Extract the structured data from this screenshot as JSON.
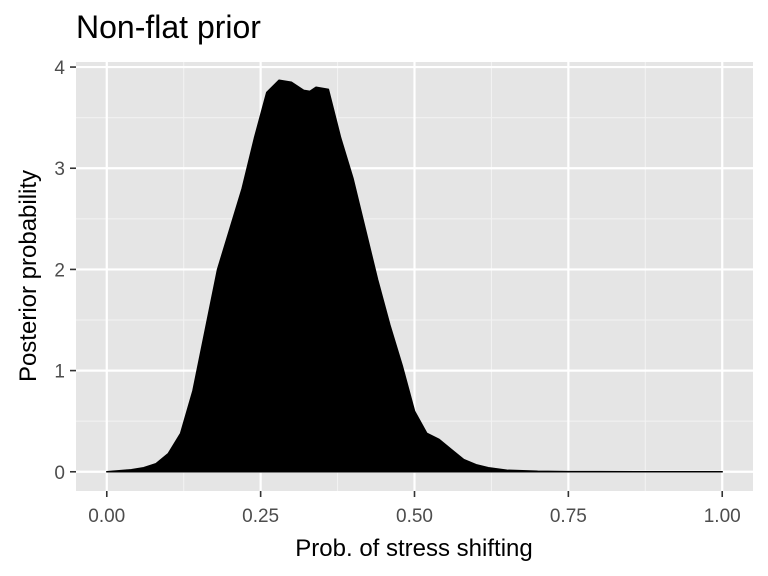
{
  "chart_data": {
    "type": "area",
    "title": "Non-flat prior",
    "xlabel": "Prob. of stress shifting",
    "ylabel": "Posterior probability",
    "xlim": [
      -0.05,
      1.05
    ],
    "ylim": [
      -0.19,
      4.05
    ],
    "grid": true,
    "x_ticks": [
      0.0,
      0.25,
      0.5,
      0.75,
      1.0
    ],
    "x_tick_labels": [
      "0.00",
      "0.25",
      "0.50",
      "0.75",
      "1.00"
    ],
    "y_ticks": [
      0,
      1,
      2,
      3,
      4
    ],
    "y_tick_labels": [
      "0",
      "1",
      "2",
      "3",
      "4"
    ],
    "x_minor_ticks": [
      0.125,
      0.375,
      0.625,
      0.875
    ],
    "y_minor_ticks": [
      0.5,
      1.5,
      2.5,
      3.5
    ],
    "series": [
      {
        "fill": "#000000",
        "x": [
          0.0,
          0.02,
          0.04,
          0.06,
          0.08,
          0.1,
          0.12,
          0.14,
          0.16,
          0.18,
          0.2,
          0.22,
          0.24,
          0.26,
          0.28,
          0.3,
          0.32,
          0.33,
          0.34,
          0.36,
          0.38,
          0.4,
          0.42,
          0.44,
          0.46,
          0.48,
          0.5,
          0.52,
          0.54,
          0.56,
          0.58,
          0.6,
          0.62,
          0.65,
          0.7,
          0.75,
          0.8,
          0.9,
          1.0
        ],
        "y": [
          0.0,
          0.01,
          0.02,
          0.04,
          0.08,
          0.18,
          0.38,
          0.8,
          1.4,
          2.0,
          2.4,
          2.8,
          3.3,
          3.75,
          3.87,
          3.85,
          3.77,
          3.76,
          3.8,
          3.78,
          3.3,
          2.9,
          2.4,
          1.9,
          1.45,
          1.05,
          0.6,
          0.38,
          0.32,
          0.22,
          0.12,
          0.07,
          0.04,
          0.015,
          0.005,
          0.002,
          0.001,
          0.0,
          0.0
        ]
      }
    ]
  },
  "colors": {
    "panel_background": "#e5e5e5",
    "grid_major": "#ffffff",
    "grid_minor": "#f2f2f2",
    "tick_label": "#4d4d4d",
    "density_fill": "#000000"
  }
}
